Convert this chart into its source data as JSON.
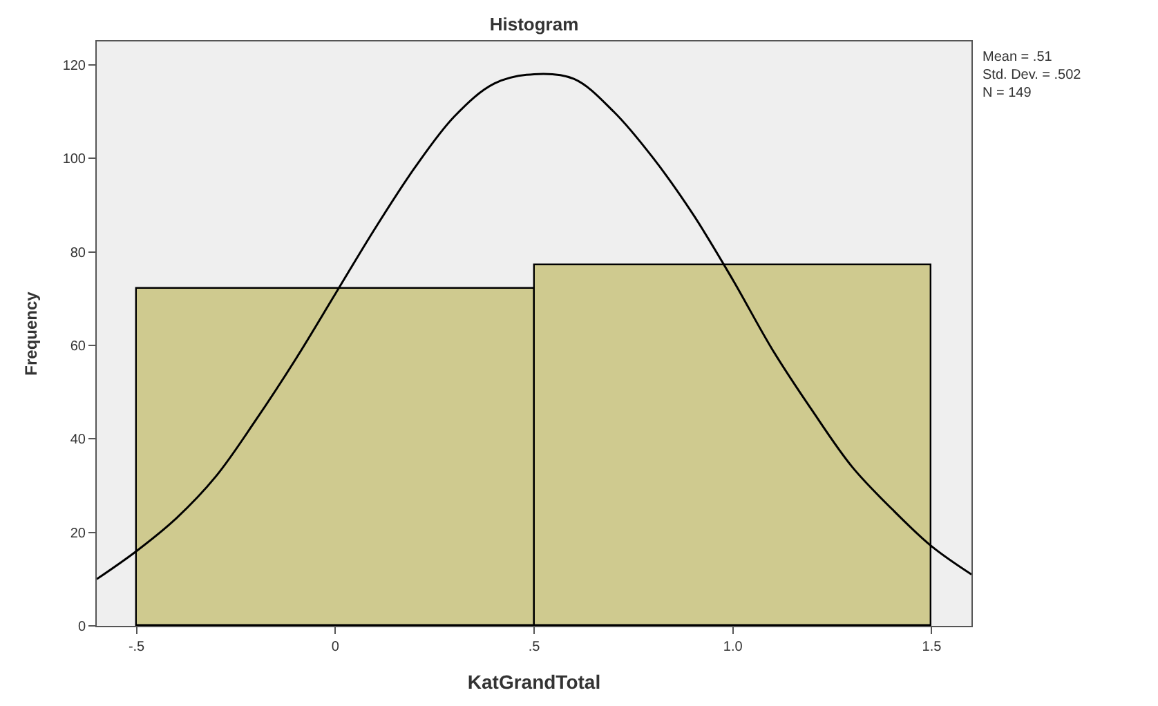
{
  "chart_data": {
    "type": "histogram",
    "title": "Histogram",
    "xlabel": "KatGrandTotal",
    "ylabel": "Frequency",
    "series": [
      {
        "bins": [
          -0.5,
          0.5,
          1.5
        ],
        "values": [
          72,
          77
        ],
        "color": "#cfca8f"
      },
      {
        "type": "line",
        "color": "#000000",
        "x": [
          -0.6,
          -0.5,
          -0.4,
          -0.3,
          -0.2,
          -0.1,
          0,
          0.1,
          0.2,
          0.3,
          0.4,
          0.5,
          0.6,
          0.7,
          0.8,
          0.9,
          1.0,
          1.1,
          1.2,
          1.3,
          1.4,
          1.5,
          1.6
        ],
        "values": [
          10,
          16,
          23,
          32,
          44,
          57,
          71,
          85,
          98,
          109,
          116,
          118,
          117,
          110,
          100,
          88,
          74,
          59,
          46,
          34,
          25,
          17,
          11
        ]
      }
    ],
    "xlim": [
      -0.6,
      1.6
    ],
    "xticks": [
      {
        "value": -0.5,
        "label": "-.5"
      },
      0,
      {
        "value": 0.5,
        "label": ".5"
      },
      {
        "value": 1.0,
        "label": "1.0"
      },
      {
        "value": 1.5,
        "label": "1.5"
      }
    ],
    "ylim": [
      0,
      125
    ],
    "yticks": [
      0,
      20,
      40,
      60,
      80,
      100,
      120
    ],
    "grid": false,
    "annotations": [
      "Mean = .51",
      "Std. Dev. = .502",
      "N = 149"
    ]
  }
}
